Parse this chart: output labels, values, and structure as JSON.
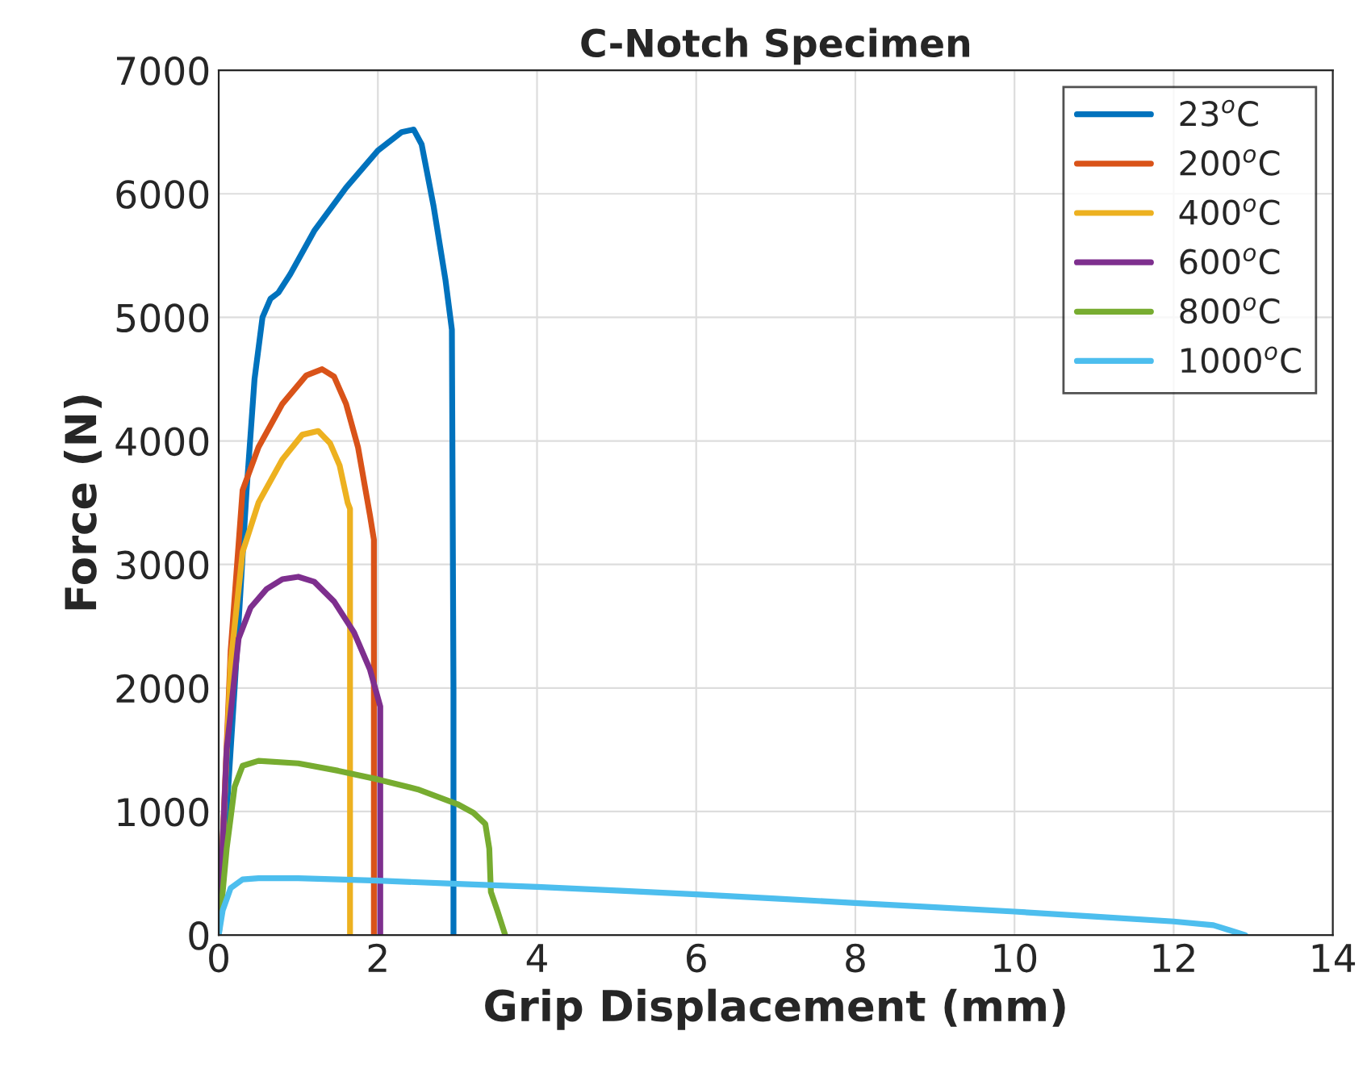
{
  "chart_data": {
    "type": "line",
    "title": "C-Notch Specimen",
    "xlabel": "Grip Displacement (mm)",
    "ylabel": "Force (N)",
    "xlim": [
      0,
      14
    ],
    "xticks": [
      0,
      2,
      4,
      6,
      8,
      10,
      12,
      14
    ],
    "ylim": [
      0,
      7000
    ],
    "yticks": [
      0,
      1000,
      2000,
      3000,
      4000,
      5000,
      6000,
      7000
    ],
    "grid": true,
    "legend": "top right",
    "line_style": "solid",
    "marker": "none",
    "series": [
      {
        "name": "23$^{o}$C",
        "color": "#0072bd",
        "x": [
          0,
          0.2,
          0.35,
          0.45,
          0.55,
          0.65,
          0.75,
          0.9,
          1.2,
          1.6,
          2.0,
          2.3,
          2.45,
          2.55,
          2.7,
          2.85,
          2.93,
          2.95,
          2.95
        ],
        "values": [
          0,
          2000,
          3600,
          4500,
          5000,
          5150,
          5200,
          5350,
          5700,
          6050,
          6350,
          6500,
          6520,
          6400,
          5900,
          5300,
          4900,
          2000,
          0
        ]
      },
      {
        "name": "200$^{o}$C",
        "color": "#d95319",
        "x": [
          0,
          0.15,
          0.3,
          0.5,
          0.8,
          1.1,
          1.3,
          1.45,
          1.6,
          1.75,
          1.9,
          1.95,
          1.95,
          1.95
        ],
        "values": [
          0,
          2300,
          3600,
          3950,
          4300,
          4530,
          4580,
          4520,
          4300,
          3950,
          3400,
          3200,
          1500,
          0
        ]
      },
      {
        "name": "400$^{o}$C",
        "color": "#edb120",
        "x": [
          0,
          0.15,
          0.3,
          0.5,
          0.8,
          1.05,
          1.25,
          1.4,
          1.52,
          1.62,
          1.65,
          1.65,
          1.65
        ],
        "values": [
          0,
          2200,
          3100,
          3500,
          3850,
          4050,
          4080,
          3980,
          3800,
          3500,
          3450,
          1500,
          0
        ]
      },
      {
        "name": "600$^{o}$C",
        "color": "#7e2f8e",
        "x": [
          0,
          0.1,
          0.25,
          0.4,
          0.6,
          0.8,
          1.0,
          1.2,
          1.45,
          1.7,
          1.9,
          2.03,
          2.03,
          2.03
        ],
        "values": [
          0,
          1500,
          2400,
          2650,
          2800,
          2880,
          2900,
          2860,
          2700,
          2450,
          2150,
          1850,
          800,
          0
        ]
      },
      {
        "name": "800$^{o}$C",
        "color": "#77ac30",
        "x": [
          0,
          0.1,
          0.2,
          0.3,
          0.5,
          1.0,
          1.5,
          2.0,
          2.5,
          3.0,
          3.2,
          3.35,
          3.4,
          3.42,
          3.5,
          3.6
        ],
        "values": [
          0,
          700,
          1200,
          1370,
          1410,
          1390,
          1330,
          1260,
          1180,
          1060,
          990,
          900,
          700,
          350,
          200,
          0
        ]
      },
      {
        "name": "1000$^{o}$C",
        "color": "#4dbeee",
        "x": [
          0,
          0.05,
          0.15,
          0.3,
          0.5,
          1.0,
          2.0,
          3.0,
          4.0,
          5.0,
          6.0,
          7.0,
          8.0,
          9.0,
          10.0,
          11.0,
          12.0,
          12.5,
          12.7,
          12.9
        ],
        "values": [
          0,
          200,
          380,
          450,
          460,
          460,
          440,
          415,
          390,
          360,
          330,
          295,
          260,
          225,
          190,
          150,
          110,
          80,
          40,
          0
        ]
      }
    ]
  }
}
